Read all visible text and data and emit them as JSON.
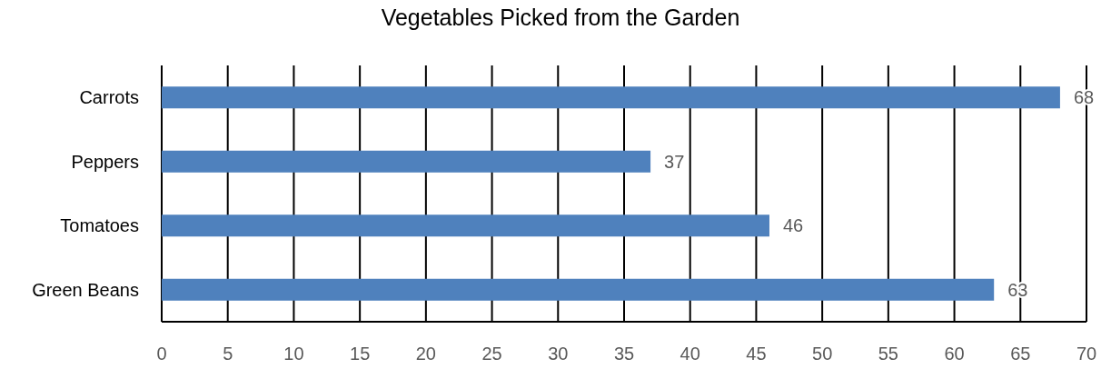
{
  "chart_data": {
    "type": "bar",
    "orientation": "horizontal",
    "title": "Vegetables Picked from the Garden",
    "categories": [
      "Carrots",
      "Peppers",
      "Tomatoes",
      "Green Beans"
    ],
    "values": [
      68,
      37,
      46,
      63
    ],
    "color": "#4f81bd",
    "xlim": [
      0,
      70
    ],
    "xticks": [
      0,
      5,
      10,
      15,
      20,
      25,
      30,
      35,
      40,
      45,
      50,
      55,
      60,
      65,
      70
    ],
    "grid": "x",
    "data_labels": true
  }
}
